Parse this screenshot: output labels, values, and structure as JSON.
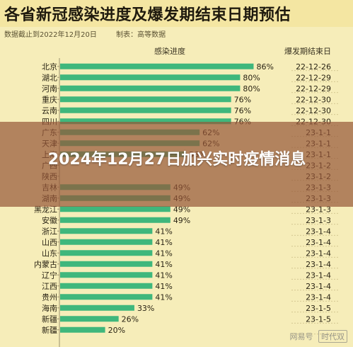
{
  "chart_data": {
    "type": "bar",
    "orientation": "horizontal",
    "title": "各省新冠感染进度及爆发期结束日期预估",
    "source_label": "数据截止到2022年12月20日",
    "maker_label": "制表：高等数据",
    "value_column_header": "感染进度",
    "date_column_header": "爆发期结束日",
    "xlim": [
      0,
      100
    ],
    "bar_color": "#3fb77c",
    "categories": [
      "北京",
      "湖北",
      "河南",
      "重庆",
      "云南",
      "四川",
      "广东",
      "天津",
      "上海",
      "广西",
      "陕西",
      "吉林",
      "湖南",
      "黑龙江",
      "安徽",
      "浙江",
      "山西",
      "山东",
      "内蒙古",
      "辽宁",
      "江西",
      "贵州",
      "海南",
      "新疆",
      "新疆"
    ],
    "values": [
      86,
      80,
      80,
      76,
      76,
      76,
      62,
      62,
      56,
      null,
      null,
      49,
      49,
      49,
      49,
      41,
      41,
      41,
      41,
      41,
      41,
      41,
      33,
      26,
      20
    ],
    "value_labels": [
      "86%",
      "80%",
      "80%",
      "76%",
      "76%",
      "76%",
      "62%",
      "62%",
      "56%",
      "",
      "",
      "49%",
      "49%",
      "49%",
      "49%",
      "41%",
      "41%",
      "41%",
      "41%",
      "41%",
      "41%",
      "41%",
      "33%",
      "26%",
      "20%"
    ],
    "end_dates": [
      "22-12-26",
      "22-12-29",
      "22-12-29",
      "22-12-30",
      "22-12-30",
      "22-12-30",
      "23-1-1",
      "23-1-1",
      "23-1-1",
      "23-1-2",
      "23-1-2",
      "23-1-3",
      "23-1-3",
      "23-1-3",
      "23-1-3",
      "23-1-4",
      "23-1-4",
      "23-1-4",
      "23-1-4",
      "23-1-4",
      "23-1-4",
      "23-1-4",
      "23-1-5",
      "23-1-5",
      ""
    ]
  },
  "overlay": {
    "headline": "2024年12月27日加兴实时疫情消息"
  },
  "watermark": {
    "site": "网易号",
    "author": "时代双"
  }
}
